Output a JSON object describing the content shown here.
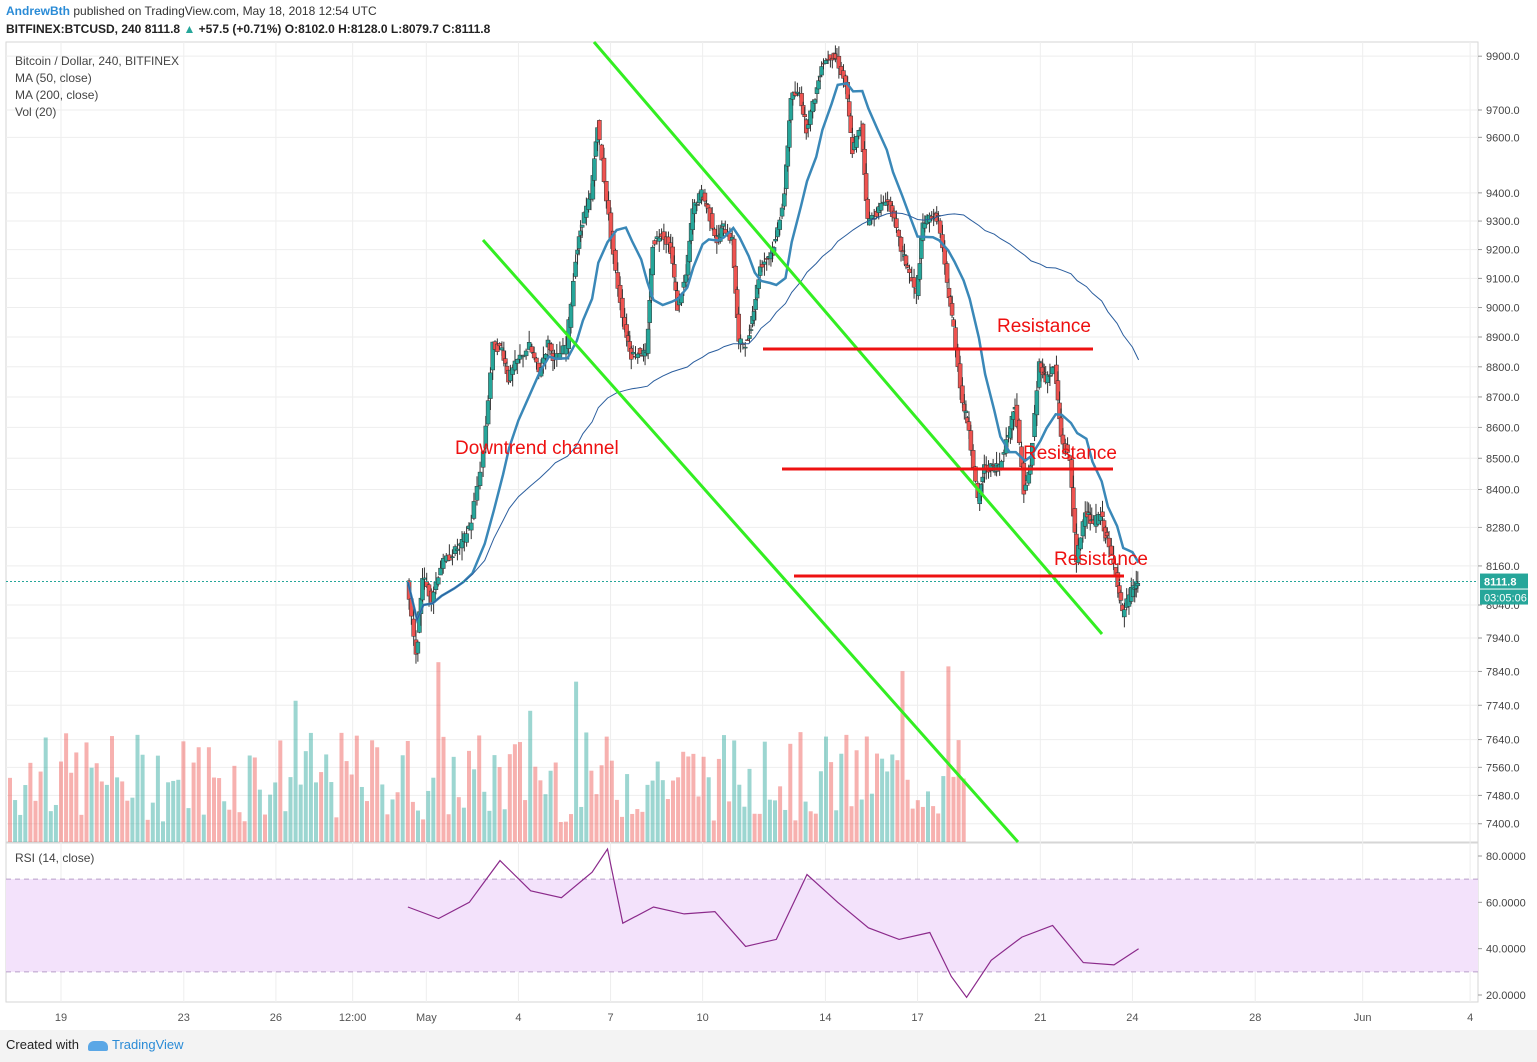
{
  "header": {
    "author": "AndrewBth",
    "published": "published on TradingView.com, May 18, 2018 12:54 UTC",
    "symbol_line": {
      "symbol": "BITFINEX:BTCUSD, 240",
      "price": "8111.8",
      "change": "+57.5 (+0.71%)",
      "o_label": "O:",
      "o": "8102.0",
      "h_label": "H:",
      "h": "8128.0",
      "l_label": "L:",
      "l": "8079.7",
      "c_label": "C:",
      "c": "8111.8"
    }
  },
  "legend": {
    "title": "Bitcoin / Dollar, 240, BITFINEX",
    "ma50": "MA (50, close)",
    "ma200": "MA (200, close)",
    "vol": "Vol (20)"
  },
  "rsi_legend": "RSI (14, close)",
  "price_badge": {
    "value": "8111.8",
    "timer": "03:05:06"
  },
  "footer": {
    "created": "Created with",
    "brand": "TradingView"
  },
  "colors": {
    "up": "#26a69a",
    "down": "#ef5350",
    "ma50": "#3a88b8",
    "ma200": "#2b5e9e",
    "channel": "#33ee22",
    "resistance": "#ee1111",
    "rsi": "#8b2a8b",
    "rsi_band": "#f3e2fb"
  },
  "chart_data": [
    {
      "type": "candlestick",
      "title": "Bitcoin / Dollar, 240, BITFINEX",
      "ylabel": "",
      "x_ticks": [
        "19",
        "23",
        "26",
        "12:00",
        "May",
        "4",
        "7",
        "10",
        "14",
        "17",
        "21",
        "24",
        "28",
        "Jun",
        "4"
      ],
      "y_ticks": [
        7400,
        7480,
        7560,
        7640,
        7740,
        7840,
        7940,
        8040,
        8160,
        8280,
        8400,
        8500,
        8600,
        8700,
        8800,
        8900,
        9000,
        9100,
        9200,
        9300,
        9400,
        9600,
        9700,
        9900
      ],
      "ylim": [
        7350,
        9950
      ],
      "y_scale": "log",
      "last_price": 8111.8,
      "close_path": [
        [
          17.3,
          8110
        ],
        [
          17.6,
          7880
        ],
        [
          17.8,
          8130
        ],
        [
          18.1,
          8060
        ],
        [
          18.4,
          8160
        ],
        [
          18.8,
          8200
        ],
        [
          19.1,
          8230
        ],
        [
          19.4,
          8300
        ],
        [
          19.8,
          8520
        ],
        [
          20.1,
          8870
        ],
        [
          20.4,
          8860
        ],
        [
          20.6,
          8760
        ],
        [
          20.9,
          8820
        ],
        [
          21.3,
          8870
        ],
        [
          21.6,
          8780
        ],
        [
          21.9,
          8880
        ],
        [
          22.1,
          8820
        ],
        [
          22.5,
          8870
        ],
        [
          22.8,
          9170
        ],
        [
          23.0,
          9300
        ],
        [
          23.3,
          9390
        ],
        [
          23.5,
          9650
        ],
        [
          23.8,
          9380
        ],
        [
          24.1,
          9120
        ],
        [
          24.4,
          8930
        ],
        [
          24.6,
          8840
        ],
        [
          24.9,
          8850
        ],
        [
          25.1,
          8840
        ],
        [
          25.3,
          9220
        ],
        [
          25.6,
          9260
        ],
        [
          25.9,
          9200
        ],
        [
          26.1,
          9000
        ],
        [
          26.4,
          9110
        ],
        [
          26.6,
          9340
        ],
        [
          26.9,
          9400
        ],
        [
          27.1,
          9340
        ],
        [
          27.4,
          9230
        ],
        [
          27.6,
          9280
        ],
        [
          27.9,
          9230
        ],
        [
          28.1,
          8880
        ],
        [
          28.4,
          8880
        ],
        [
          28.6,
          9000
        ],
        [
          28.8,
          9140
        ],
        [
          29.1,
          9180
        ],
        [
          29.3,
          9230
        ],
        [
          29.6,
          9400
        ],
        [
          29.8,
          9750
        ],
        [
          30.1,
          9760
        ],
        [
          30.3,
          9630
        ],
        [
          30.6,
          9750
        ],
        [
          30.8,
          9870
        ],
        [
          31.1,
          9900
        ],
        [
          31.3,
          9890
        ],
        [
          31.6,
          9790
        ],
        [
          31.8,
          9550
        ],
        [
          32.1,
          9640
        ],
        [
          32.3,
          9300
        ],
        [
          32.6,
          9330
        ],
        [
          32.9,
          9380
        ],
        [
          33.1,
          9330
        ],
        [
          33.4,
          9200
        ],
        [
          33.6,
          9140
        ],
        [
          33.9,
          9040
        ],
        [
          34.1,
          9290
        ],
        [
          34.4,
          9320
        ],
        [
          34.6,
          9310
        ],
        [
          34.9,
          9080
        ],
        [
          35.1,
          8930
        ],
        [
          35.4,
          8680
        ],
        [
          35.6,
          8600
        ],
        [
          35.9,
          8360
        ],
        [
          36.1,
          8470
        ],
        [
          36.4,
          8470
        ],
        [
          36.6,
          8480
        ],
        [
          36.9,
          8580
        ],
        [
          37.1,
          8680
        ],
        [
          37.4,
          8400
        ],
        [
          37.6,
          8470
        ],
        [
          37.9,
          8810
        ],
        [
          38.1,
          8760
        ],
        [
          38.4,
          8800
        ],
        [
          38.6,
          8570
        ],
        [
          38.9,
          8490
        ],
        [
          39.1,
          8170
        ],
        [
          39.4,
          8340
        ],
        [
          39.6,
          8290
        ],
        [
          39.9,
          8320
        ],
        [
          40.1,
          8240
        ],
        [
          40.4,
          8140
        ],
        [
          40.6,
          8010
        ],
        [
          40.9,
          8080
        ],
        [
          41.1,
          8111.8
        ]
      ]
    },
    {
      "type": "line",
      "series": [
        {
          "name": "RSI (14, close)",
          "x": [
            17.3,
            18.3,
            19.3,
            20.3,
            21.3,
            22.3,
            23.3,
            23.8,
            24.3,
            25.3,
            26.3,
            27.3,
            28.3,
            29.3,
            30.3,
            31.3,
            32.3,
            33.3,
            34.3,
            35.0,
            35.5,
            36.3,
            37.3,
            38.3,
            39.3,
            40.3,
            41.1
          ],
          "y": [
            58,
            53,
            60,
            78,
            65,
            62,
            73,
            83,
            51,
            58,
            55,
            56,
            41,
            44,
            72,
            60,
            49,
            44,
            47,
            28,
            19,
            35,
            45,
            50,
            34,
            33,
            40
          ]
        }
      ],
      "ylim": [
        15,
        82
      ],
      "y_ticks": [
        "80.0000",
        "60.0000",
        "40.0000",
        "20.0000"
      ],
      "band": [
        30,
        70
      ]
    }
  ],
  "annotations": {
    "channel_label": "Downtrend channel",
    "resistance_1": "Resistance",
    "resistance_2": "Resistance",
    "resistance_3": "Resistance"
  }
}
